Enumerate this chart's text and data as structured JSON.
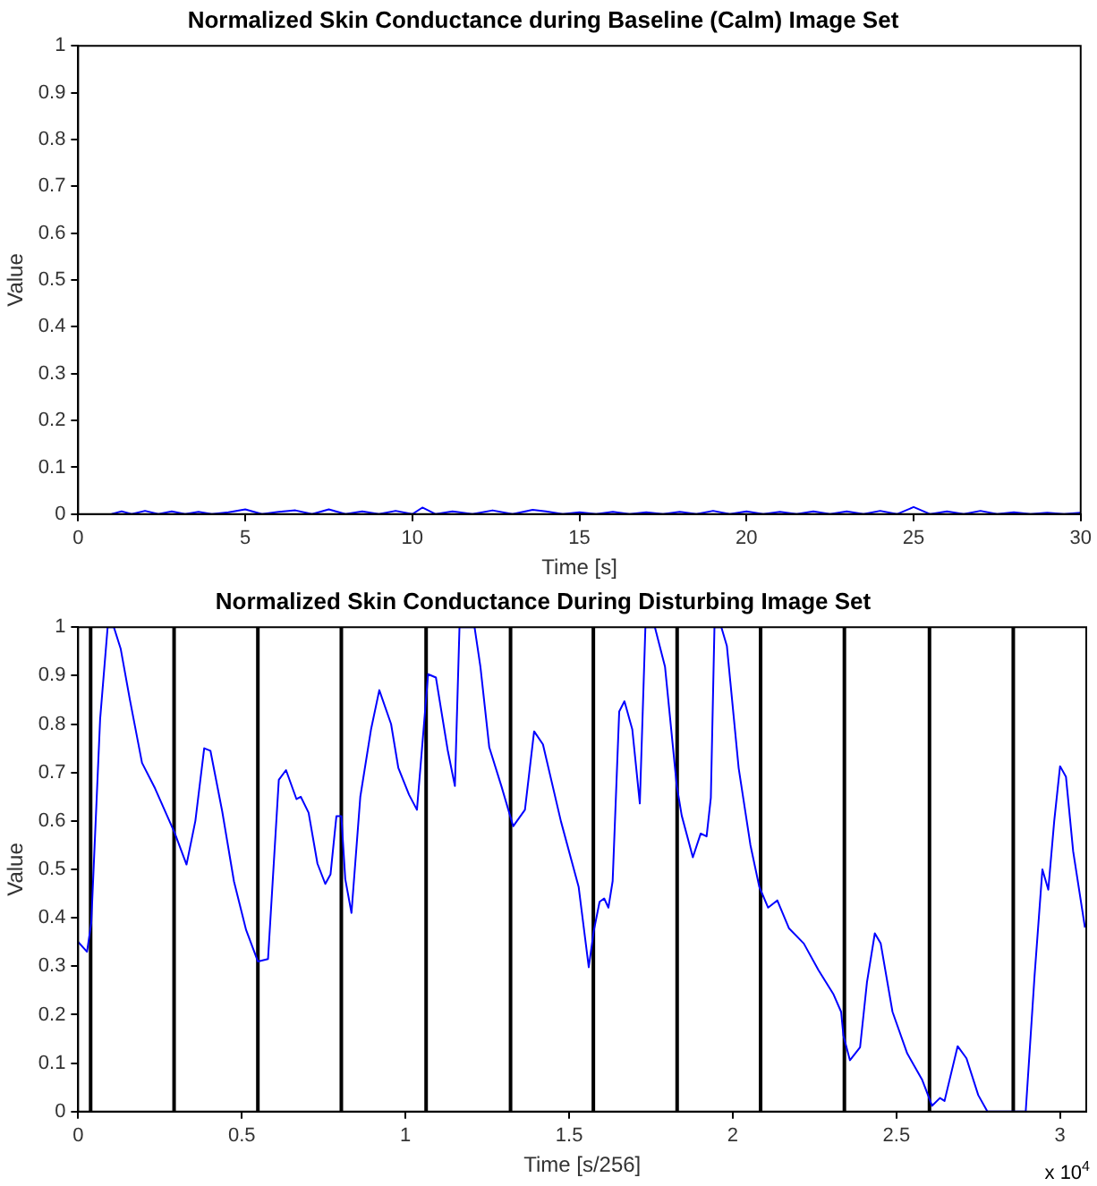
{
  "chart_data": [
    {
      "type": "line",
      "title": "Normalized Skin Conductance during Baseline (Calm) Image Set",
      "xlabel": "Time [s]",
      "ylabel": "Value",
      "xlim": [
        0,
        30
      ],
      "xticks": [
        0,
        5,
        10,
        15,
        20,
        25,
        30
      ],
      "ylim": [
        0,
        1
      ],
      "yticks": [
        0,
        0.1,
        0.2,
        0.3,
        0.4,
        0.5,
        0.6,
        0.7,
        0.8,
        0.9,
        1
      ],
      "grid": false,
      "legend": false,
      "marker": "none",
      "line_style": "solid",
      "series": [
        {
          "color": "#0000ff",
          "x": [
            1,
            1.3,
            1.6,
            2,
            2.4,
            2.8,
            3.2,
            3.6,
            4,
            4.5,
            5,
            5.5,
            6,
            6.5,
            7,
            7.5,
            8,
            8.5,
            9,
            9.5,
            10,
            10.3,
            10.7,
            11.2,
            11.8,
            12.4,
            13,
            13.6,
            14,
            14.5,
            15,
            15.5,
            16,
            16.5,
            17,
            17.5,
            18,
            18.5,
            19,
            19.5,
            20,
            20.5,
            21,
            21.5,
            22,
            22.5,
            23,
            23.5,
            24,
            24.5,
            25,
            25.5,
            26,
            26.5,
            27,
            27.5,
            28,
            28.5,
            29,
            29.5,
            30
          ],
          "values": [
            0,
            0.006,
            0,
            0.007,
            0,
            0.006,
            0,
            0.005,
            0,
            0.004,
            0.01,
            0,
            0.005,
            0.008,
            0,
            0.01,
            0,
            0.006,
            0,
            0.007,
            0,
            0.014,
            0,
            0.006,
            0,
            0.008,
            0,
            0.009,
            0.006,
            0,
            0.004,
            0,
            0.005,
            0,
            0.004,
            0,
            0.005,
            0,
            0.007,
            0,
            0.006,
            0,
            0.005,
            0,
            0.006,
            0,
            0.006,
            0,
            0.007,
            0,
            0.015,
            0,
            0.006,
            0,
            0.007,
            0,
            0.004,
            0,
            0.003,
            0,
            0.003
          ]
        }
      ]
    },
    {
      "type": "line",
      "title": "Normalized Skin Conductance During Disturbing Image Set",
      "xlabel": "Time [s/256]",
      "ylabel": "Value",
      "annotations": [
        "x 10$^{4}$"
      ],
      "xlim": [
        0,
        3.08
      ],
      "xticks": [
        0,
        0.5,
        1,
        1.5,
        2,
        2.5,
        3
      ],
      "ylim": [
        0,
        1
      ],
      "yticks": [
        0,
        0.1,
        0.2,
        0.3,
        0.4,
        0.5,
        0.6,
        0.7,
        0.8,
        0.9,
        1
      ],
      "grid": false,
      "legend": false,
      "marker": "none",
      "line_style": "solid",
      "ref_lines": [
        {
          "axis": "x",
          "value": 0.038,
          "color": "#000000"
        },
        {
          "axis": "x",
          "value": 0.293,
          "color": "#000000"
        },
        {
          "axis": "x",
          "value": 0.549,
          "color": "#000000"
        },
        {
          "axis": "x",
          "value": 0.804,
          "color": "#000000"
        },
        {
          "axis": "x",
          "value": 1.063,
          "color": "#000000"
        },
        {
          "axis": "x",
          "value": 1.321,
          "color": "#000000"
        },
        {
          "axis": "x",
          "value": 1.574,
          "color": "#000000"
        },
        {
          "axis": "x",
          "value": 1.83,
          "color": "#000000"
        },
        {
          "axis": "x",
          "value": 2.085,
          "color": "#000000"
        },
        {
          "axis": "x",
          "value": 2.341,
          "color": "#000000"
        },
        {
          "axis": "x",
          "value": 2.601,
          "color": "#000000"
        },
        {
          "axis": "x",
          "value": 2.857,
          "color": "#000000"
        }
      ],
      "series": [
        {
          "color": "#0000ff",
          "x": [
            0,
            0.027,
            0.04,
            0.067,
            0.09,
            0.109,
            0.13,
            0.158,
            0.195,
            0.235,
            0.295,
            0.331,
            0.358,
            0.385,
            0.404,
            0.44,
            0.476,
            0.513,
            0.549,
            0.58,
            0.613,
            0.635,
            0.667,
            0.68,
            0.704,
            0.731,
            0.755,
            0.771,
            0.789,
            0.804,
            0.816,
            0.835,
            0.862,
            0.895,
            0.92,
            0.956,
            0.978,
            1.011,
            1.035,
            1.056,
            1.069,
            1.093,
            1.129,
            1.151,
            1.165,
            1.211,
            1.229,
            1.256,
            1.293,
            1.329,
            1.365,
            1.393,
            1.42,
            1.475,
            1.529,
            1.56,
            1.575,
            1.593,
            1.607,
            1.62,
            1.633,
            1.653,
            1.669,
            1.693,
            1.716,
            1.733,
            1.762,
            1.793,
            1.829,
            1.844,
            1.878,
            1.902,
            1.92,
            1.933,
            1.944,
            1.965,
            1.982,
            2.018,
            2.054,
            2.081,
            2.108,
            2.136,
            2.172,
            2.217,
            2.262,
            2.307,
            2.331,
            2.338,
            2.358,
            2.389,
            2.41,
            2.434,
            2.452,
            2.488,
            2.533,
            2.579,
            2.609,
            2.633,
            2.647,
            2.687,
            2.714,
            2.75,
            2.778,
            2.85,
            2.895,
            2.922,
            2.946,
            2.964,
            2.982,
            3.0,
            3.018,
            3.04,
            3.076
          ],
          "values": [
            0.35,
            0.33,
            0.39,
            0.81,
            1.0,
            1.0,
            0.955,
            0.85,
            0.72,
            0.667,
            0.575,
            0.51,
            0.6,
            0.75,
            0.745,
            0.62,
            0.475,
            0.375,
            0.31,
            0.315,
            0.685,
            0.705,
            0.645,
            0.65,
            0.617,
            0.512,
            0.47,
            0.49,
            0.61,
            0.61,
            0.48,
            0.41,
            0.65,
            0.79,
            0.87,
            0.8,
            0.71,
            0.654,
            0.623,
            0.795,
            0.903,
            0.896,
            0.746,
            0.672,
            1.0,
            1.0,
            0.918,
            0.752,
            0.672,
            0.589,
            0.623,
            0.785,
            0.758,
            0.599,
            0.464,
            0.298,
            0.372,
            0.433,
            0.44,
            0.421,
            0.476,
            0.826,
            0.847,
            0.789,
            0.636,
            1.0,
            1.0,
            0.918,
            0.672,
            0.611,
            0.525,
            0.574,
            0.568,
            0.648,
            1.0,
            1.0,
            0.961,
            0.709,
            0.55,
            0.464,
            0.421,
            0.436,
            0.378,
            0.347,
            0.292,
            0.243,
            0.206,
            0.157,
            0.106,
            0.133,
            0.267,
            0.368,
            0.347,
            0.206,
            0.12,
            0.065,
            0.012,
            0.028,
            0.022,
            0.135,
            0.11,
            0.034,
            0,
            null,
            0,
            0.28,
            0.5,
            0.458,
            0.599,
            0.713,
            0.691,
            0.537,
            0.38
          ]
        }
      ]
    }
  ]
}
